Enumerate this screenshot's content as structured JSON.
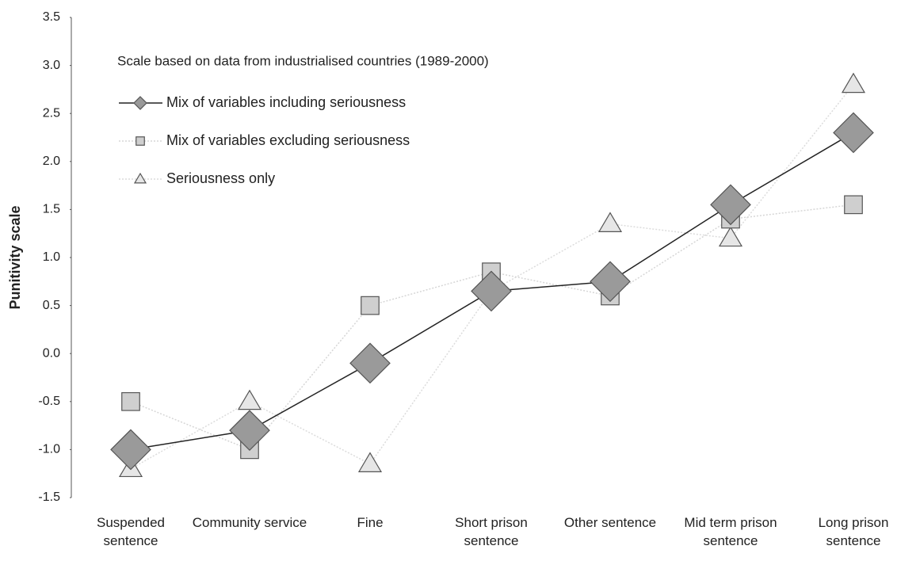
{
  "chart_data": {
    "type": "line",
    "subtitle": "Scale based on data from industrialised countries (1989-2000)",
    "y_label": "Punitivity scale",
    "categories": [
      "Suspended sentence",
      "Community service",
      "Fine",
      "Short prison sentence",
      "Other sentence",
      "Mid term prison sentence",
      "Long prison sentence"
    ],
    "series": [
      {
        "name": "Mix of variables including seriousness",
        "color": "#9a9a9a",
        "line_color": "#222222",
        "marker": "diamond",
        "values": [
          -1.0,
          -0.8,
          -0.1,
          0.65,
          0.75,
          1.55,
          2.3
        ]
      },
      {
        "name": "Mix of variables excluding seriousness",
        "color": "#cfcfcf",
        "line_color": "#d6d6d6",
        "marker": "square",
        "values": [
          -0.5,
          -1.0,
          0.5,
          0.85,
          0.6,
          1.4,
          1.55
        ]
      },
      {
        "name": "Seriousness only",
        "color": "#e6e6e6",
        "line_color": "#dcdcdc",
        "marker": "triangle",
        "values": [
          -1.2,
          -0.5,
          -1.15,
          0.65,
          1.35,
          1.2,
          2.8
        ]
      }
    ],
    "ylim": [
      -1.5,
      3.5
    ],
    "yticks": [
      -1.5,
      {
        "value": -1,
        "label": "-1.0"
      },
      -0.5,
      {
        "value": 0,
        "label": "0.0"
      },
      0.5,
      {
        "value": 1,
        "label": "1.0"
      },
      1.5,
      {
        "value": 2,
        "label": "2.0"
      },
      2.5,
      {
        "value": 3,
        "label": "3.0"
      },
      3.5
    ],
    "grid": false
  }
}
